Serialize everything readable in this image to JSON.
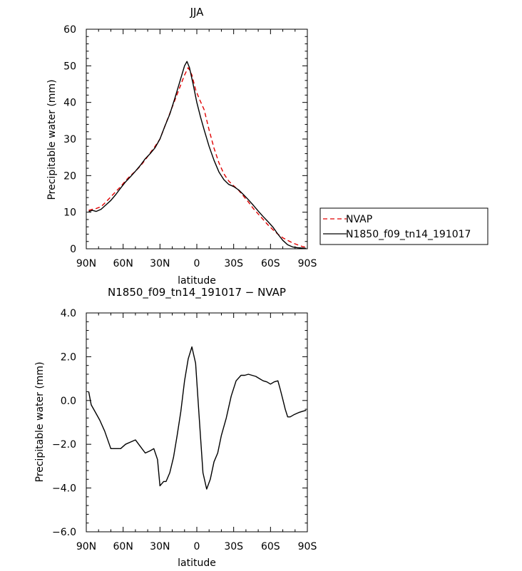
{
  "chart_data": [
    {
      "type": "line",
      "title": "JJA",
      "xlabel": "latitude",
      "ylabel": "Precipitable water (mm)",
      "xlim": [
        90,
        -90
      ],
      "ylim": [
        0,
        60
      ],
      "x_ticks": [
        90,
        60,
        30,
        0,
        -30,
        -60,
        -90
      ],
      "x_tick_labels": [
        "90N",
        "60N",
        "30N",
        "0",
        "30S",
        "60S",
        "90S"
      ],
      "y_ticks": [
        0,
        10,
        20,
        30,
        40,
        50,
        60
      ],
      "y_tick_labels": [
        "0",
        "10",
        "20",
        "30",
        "40",
        "50",
        "60"
      ],
      "legend_position": "outside-right",
      "series": [
        {
          "name": "NVAP",
          "color": "#e00000",
          "dash": "dashed",
          "x": [
            88,
            85,
            82,
            78,
            74,
            70,
            66,
            62,
            58,
            54,
            50,
            46,
            42,
            38,
            34,
            30,
            26,
            22,
            18,
            14,
            10,
            7,
            4,
            1,
            -2,
            -6,
            -10,
            -14,
            -18,
            -22,
            -26,
            -30,
            -34,
            -38,
            -42,
            -46,
            -50,
            -54,
            -58,
            -62,
            -66,
            -70,
            -74,
            -78,
            -82,
            -86,
            -89
          ],
          "values": [
            10.5,
            10.8,
            11.0,
            11.5,
            12.8,
            14.2,
            15.6,
            17.0,
            18.6,
            20.0,
            21.2,
            22.6,
            24.3,
            26.2,
            28.0,
            30.0,
            33.5,
            37.0,
            40.5,
            44.0,
            47.5,
            49.5,
            47.5,
            43.5,
            41.0,
            38.0,
            32.5,
            27.5,
            23.5,
            20.5,
            18.5,
            17.2,
            16.0,
            14.4,
            12.8,
            11.0,
            9.5,
            8.0,
            6.5,
            5.2,
            4.0,
            3.0,
            2.3,
            1.6,
            1.1,
            0.6,
            0.4
          ]
        },
        {
          "name": "N1850_f09_tn14_191017",
          "color": "#000000",
          "dash": "solid",
          "x": [
            88,
            85,
            82,
            78,
            74,
            70,
            66,
            62,
            58,
            54,
            50,
            46,
            42,
            38,
            34,
            30,
            26,
            22,
            18,
            14,
            10,
            8,
            6,
            3,
            0,
            -3,
            -6,
            -10,
            -14,
            -18,
            -22,
            -26,
            -30,
            -34,
            -38,
            -42,
            -46,
            -50,
            -54,
            -58,
            -62,
            -66,
            -70,
            -74,
            -78,
            -82,
            -86,
            -89
          ],
          "values": [
            10.2,
            10.5,
            10.2,
            10.8,
            12.0,
            13.2,
            14.8,
            16.6,
            18.3,
            19.7,
            21.2,
            22.8,
            24.6,
            26.0,
            27.6,
            30.0,
            33.5,
            36.8,
            41.0,
            45.5,
            50.0,
            51.2,
            49.5,
            45.0,
            40.0,
            36.0,
            32.5,
            28.0,
            24.2,
            21.0,
            18.9,
            17.6,
            17.0,
            16.1,
            14.8,
            13.4,
            11.9,
            10.3,
            8.8,
            7.4,
            5.9,
            4.0,
            2.3,
            1.1,
            0.5,
            0.3,
            0.2,
            0.1
          ]
        }
      ]
    },
    {
      "type": "line",
      "title": "N1850_f09_tn14_191017 − NVAP",
      "xlabel": "latitude",
      "ylabel": "Precipitable water (mm)",
      "xlim": [
        90,
        -90
      ],
      "ylim": [
        -6.0,
        4.0
      ],
      "x_ticks": [
        90,
        60,
        30,
        0,
        -30,
        -60,
        -90
      ],
      "x_tick_labels": [
        "90N",
        "60N",
        "30N",
        "0",
        "30S",
        "60S",
        "90S"
      ],
      "y_ticks": [
        -6,
        -4,
        -2,
        0,
        2,
        4
      ],
      "y_tick_labels": [
        "−6.0",
        "−4.0",
        "−2.0",
        "0.0",
        "2.0",
        "4.0"
      ],
      "series": [
        {
          "color": "#000000",
          "dash": "solid",
          "x": [
            88,
            86,
            83,
            79,
            75,
            70,
            66,
            62,
            58,
            54,
            50,
            46,
            42,
            38,
            35,
            32,
            30,
            27,
            25,
            22,
            19,
            16,
            13,
            10,
            7,
            4,
            1,
            -2,
            -5,
            -8,
            -11,
            -14,
            -17,
            -20,
            -24,
            -28,
            -32,
            -36,
            -39,
            -42,
            -45,
            -48,
            -51,
            -54,
            -57,
            -60,
            -63,
            -66,
            -68,
            -70,
            -72,
            -74,
            -76,
            -79,
            -83,
            -86,
            -89
          ],
          "values": [
            0.4,
            -0.2,
            -0.5,
            -0.9,
            -1.4,
            -2.2,
            -2.2,
            -2.2,
            -2.0,
            -1.9,
            -1.8,
            -2.1,
            -2.4,
            -2.3,
            -2.2,
            -2.7,
            -3.9,
            -3.7,
            -3.7,
            -3.3,
            -2.6,
            -1.6,
            -0.5,
            0.9,
            1.9,
            2.45,
            1.7,
            -0.8,
            -3.3,
            -4.05,
            -3.6,
            -2.8,
            -2.4,
            -1.6,
            -0.8,
            0.2,
            0.9,
            1.15,
            1.15,
            1.2,
            1.15,
            1.1,
            1.0,
            0.9,
            0.85,
            0.75,
            0.85,
            0.9,
            0.5,
            0.05,
            -0.4,
            -0.75,
            -0.75,
            -0.65,
            -0.55,
            -0.5,
            -0.45
          ]
        }
      ]
    }
  ]
}
